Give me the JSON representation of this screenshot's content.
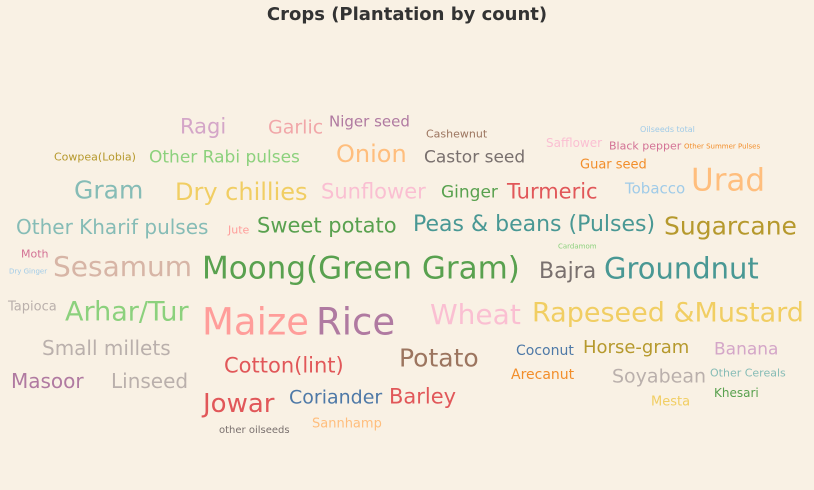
{
  "title": "Crops (Plantation by count)",
  "chart_data": {
    "type": "word_cloud",
    "title": "Crops (Plantation by count)",
    "words": [
      {
        "text": "Ragi",
        "color": "#d4a6c8"
      },
      {
        "text": "Garlic",
        "color": "#f1a7a9"
      },
      {
        "text": "Niger seed",
        "color": "#b07aa1"
      },
      {
        "text": "Cashewnut",
        "color": "#9c755f"
      },
      {
        "text": "Oilseeds total",
        "color": "#a0cbe8"
      },
      {
        "text": "Safflower",
        "color": "#fabfd2"
      },
      {
        "text": "Black pepper",
        "color": "#d37295"
      },
      {
        "text": "Other Summer Pulses",
        "color": "#f28e2b"
      },
      {
        "text": "Cowpea(Lobia)",
        "color": "#b6992d"
      },
      {
        "text": "Other Rabi pulses",
        "color": "#8cd17d"
      },
      {
        "text": "Onion",
        "color": "#ffbe7d"
      },
      {
        "text": "Castor seed",
        "color": "#79706e"
      },
      {
        "text": "Guar seed",
        "color": "#f28e2b"
      },
      {
        "text": "Gram",
        "color": "#86bcb6"
      },
      {
        "text": "Dry chillies",
        "color": "#f1ce63"
      },
      {
        "text": "Sunflower",
        "color": "#fabfd2"
      },
      {
        "text": "Ginger",
        "color": "#59a14f"
      },
      {
        "text": "Turmeric",
        "color": "#e15759"
      },
      {
        "text": "Tobacco",
        "color": "#a0cbe8"
      },
      {
        "text": "Urad",
        "color": "#ffbe7d"
      },
      {
        "text": "Other Kharif pulses",
        "color": "#86bcb6"
      },
      {
        "text": "Jute",
        "color": "#ff9d9a"
      },
      {
        "text": "Sweet potato",
        "color": "#59a14f"
      },
      {
        "text": "Peas & beans (Pulses)",
        "color": "#499894"
      },
      {
        "text": "Sugarcane",
        "color": "#b6992d"
      },
      {
        "text": "Cardamom",
        "color": "#8cd17d"
      },
      {
        "text": "Moth",
        "color": "#d37295"
      },
      {
        "text": "Dry Ginger",
        "color": "#a0cbe8"
      },
      {
        "text": "Sesamum",
        "color": "#d7b5a6"
      },
      {
        "text": "Moong(Green Gram)",
        "color": "#59a14f"
      },
      {
        "text": "Bajra",
        "color": "#79706e"
      },
      {
        "text": "Groundnut",
        "color": "#499894"
      },
      {
        "text": "Tapioca",
        "color": "#bab0ac"
      },
      {
        "text": "Arhar/Tur",
        "color": "#8cd17d"
      },
      {
        "text": "Maize",
        "color": "#ff9d9a"
      },
      {
        "text": "Rice",
        "color": "#b07aa1"
      },
      {
        "text": "Wheat",
        "color": "#fabfd2"
      },
      {
        "text": "Rapeseed &Mustard",
        "color": "#f1ce63"
      },
      {
        "text": "Small millets",
        "color": "#bab0ac"
      },
      {
        "text": "Potato",
        "color": "#9c755f"
      },
      {
        "text": "Coconut",
        "color": "#4e79a7"
      },
      {
        "text": "Horse-gram",
        "color": "#b6992d"
      },
      {
        "text": "Banana",
        "color": "#d4a6c8"
      },
      {
        "text": "Cotton(lint)",
        "color": "#e15759"
      },
      {
        "text": "Masoor",
        "color": "#b07aa1"
      },
      {
        "text": "Linseed",
        "color": "#bab0ac"
      },
      {
        "text": "Arecanut",
        "color": "#f28e2b"
      },
      {
        "text": "Soyabean",
        "color": "#bab0ac"
      },
      {
        "text": "Other Cereals",
        "color": "#86bcb6"
      },
      {
        "text": "Jowar",
        "color": "#e15759"
      },
      {
        "text": "Coriander",
        "color": "#4e79a7"
      },
      {
        "text": "Barley",
        "color": "#e15759"
      },
      {
        "text": "Khesari",
        "color": "#59a14f"
      },
      {
        "text": "Mesta",
        "color": "#f1ce63"
      },
      {
        "text": "other oilseeds",
        "color": "#79706e"
      },
      {
        "text": "Sannhamp",
        "color": "#ffbe7d"
      }
    ]
  }
}
